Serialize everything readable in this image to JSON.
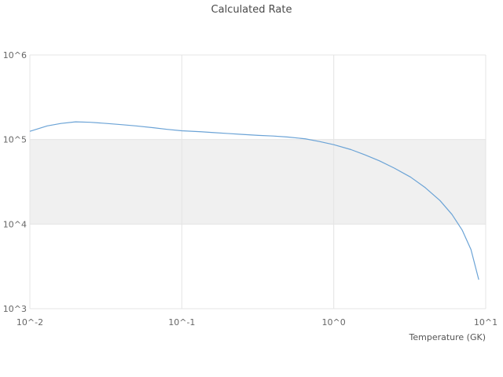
{
  "chart_data": {
    "type": "line",
    "title": "Calculated Rate",
    "xlabel": "Temperature (GK)",
    "ylabel": "",
    "x_scale": "log",
    "y_scale": "log",
    "xlim": [
      0.01,
      10
    ],
    "ylim": [
      1000,
      1000000
    ],
    "grid": true,
    "x_ticks": [
      {
        "value": 0.01,
        "label": "10^-2"
      },
      {
        "value": 0.1,
        "label": "10^-1"
      },
      {
        "value": 1,
        "label": "10^0"
      },
      {
        "value": 10,
        "label": "10^1"
      }
    ],
    "y_ticks": [
      {
        "value": 1000,
        "label": "10^3"
      },
      {
        "value": 10000,
        "label": "10^4"
      },
      {
        "value": 100000,
        "label": "10^5"
      },
      {
        "value": 1000000,
        "label": "10^6"
      }
    ],
    "highlight_band": {
      "from": 10000,
      "to": 100000,
      "color": "#f0f0f0"
    },
    "grid_color": "#e4e4e4",
    "series": [
      {
        "name": "Calculated Rate",
        "color": "#6ba3d6",
        "x": [
          0.01,
          0.013,
          0.016,
          0.02,
          0.025,
          0.032,
          0.04,
          0.05,
          0.065,
          0.08,
          0.1,
          0.13,
          0.16,
          0.2,
          0.25,
          0.32,
          0.4,
          0.5,
          0.65,
          0.8,
          1.0,
          1.3,
          1.6,
          2.0,
          2.5,
          3.2,
          4.0,
          5.0,
          6.0,
          7.0,
          8.0,
          9.0
        ],
        "y": [
          125000,
          145000,
          155000,
          162000,
          160000,
          155000,
          150000,
          145000,
          138000,
          132000,
          127000,
          124000,
          121000,
          118000,
          115000,
          112000,
          110000,
          107000,
          102000,
          95000,
          87000,
          76000,
          66000,
          56000,
          46000,
          36000,
          27000,
          19000,
          13000,
          8500,
          5000,
          2200
        ]
      }
    ]
  }
}
